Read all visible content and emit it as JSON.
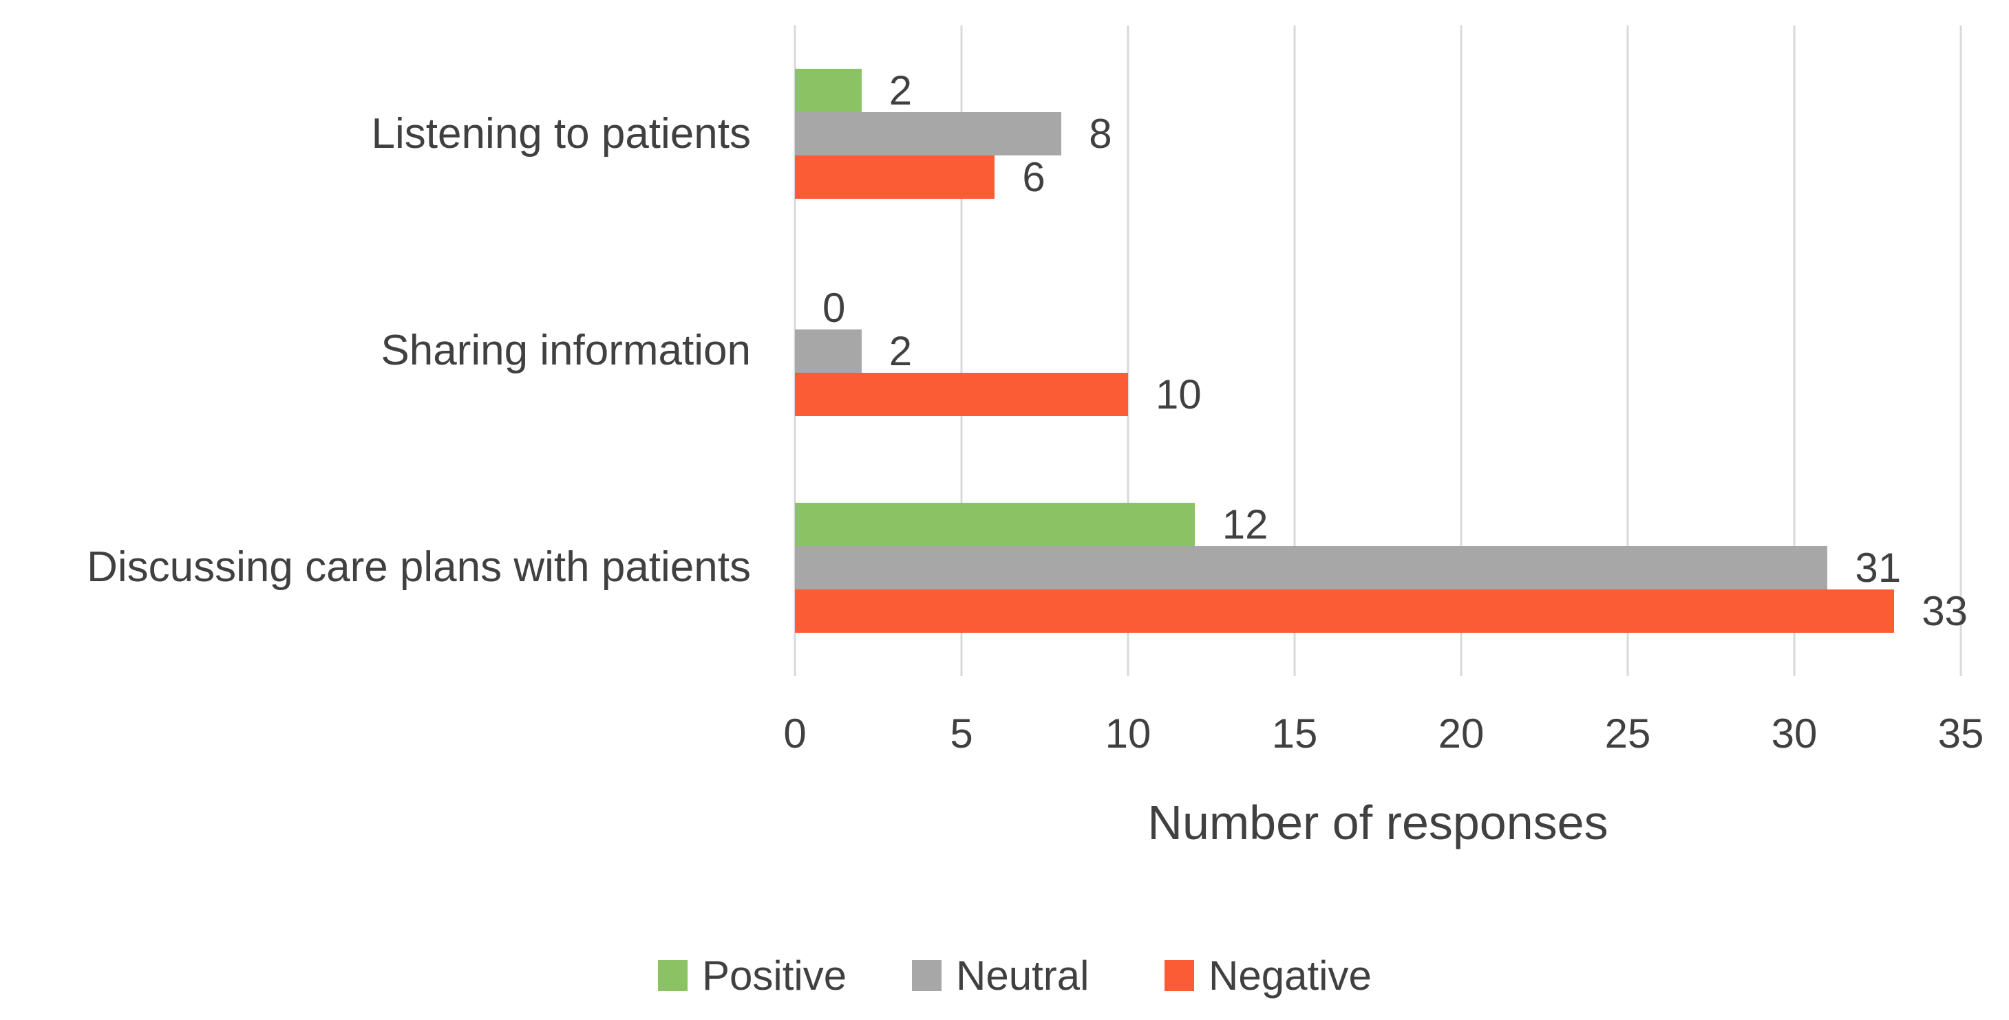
{
  "chart_data": {
    "type": "bar",
    "orientation": "horizontal",
    "title": "",
    "xlabel": "Number of responses",
    "ylabel": "",
    "categories": [
      "Listening to patients",
      "Sharing information",
      "Discussing care plans with patients"
    ],
    "series": [
      {
        "name": "Positive",
        "color": "#8BC264",
        "values": [
          2,
          0,
          12
        ]
      },
      {
        "name": "Neutral",
        "color": "#A7A7A7",
        "values": [
          8,
          2,
          31
        ]
      },
      {
        "name": "Negative",
        "color": "#FB5B35",
        "values": [
          6,
          10,
          33
        ]
      }
    ],
    "xlim": [
      0,
      35
    ],
    "x_ticks": [
      0,
      5,
      10,
      15,
      20,
      25,
      30,
      35
    ],
    "grid": "vertical-gridlines-on",
    "legend_position": "bottom",
    "data_labels": "outside-end"
  },
  "colors": {
    "gridline": "#D9D9D9",
    "text": "#404040",
    "background": "#FFFFFF"
  }
}
